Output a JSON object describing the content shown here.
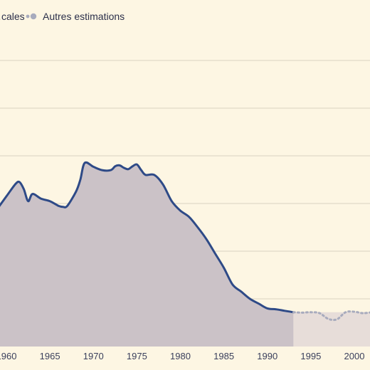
{
  "legend": {
    "items": [
      {
        "label": "…cales",
        "style": "solid",
        "color": "#2e4a87"
      },
      {
        "label": "Autres estimations",
        "style": "dotted",
        "color": "#a8abbd"
      }
    ]
  },
  "colors": {
    "background": "#fdf6e3",
    "area_main": "#cbc2c7",
    "area_other": "#e7ddd9",
    "line_main": "#2e4a87",
    "line_other": "#a8abbd",
    "grid": "#d9d2c0"
  },
  "chart_data": {
    "type": "area",
    "title": "",
    "xlabel": "",
    "ylabel": "",
    "xlim": [
      1959,
      2002
    ],
    "ylim": [
      0,
      7
    ],
    "grid": true,
    "legend_position": "top-left",
    "x_ticks": [
      "1960",
      "1965",
      "1970",
      "1975",
      "1980",
      "1985",
      "1990",
      "1995",
      "2000"
    ],
    "x_tick_values": [
      1960,
      1965,
      1970,
      1975,
      1980,
      1985,
      1990,
      1995,
      2000
    ],
    "y_gridlines": [
      1,
      2,
      3,
      4,
      5,
      6
    ],
    "series": [
      {
        "name": "…cales",
        "style": "solid",
        "x": [
          1959,
          1960,
          1961,
          1961.5,
          1962,
          1962.5,
          1963,
          1964,
          1965,
          1966,
          1966.5,
          1967,
          1968,
          1968.5,
          1969,
          1970,
          1971,
          1972,
          1972.5,
          1973,
          1973.5,
          1974,
          1974.5,
          1975,
          1975.5,
          1976,
          1977,
          1978,
          1979,
          1980,
          1981,
          1982,
          1983,
          1984,
          1985,
          1986,
          1987,
          1988,
          1989,
          1990,
          1991,
          1992,
          1993
        ],
        "values": [
          2.9,
          3.15,
          3.4,
          3.45,
          3.3,
          3.05,
          3.2,
          3.1,
          3.05,
          2.95,
          2.93,
          2.95,
          3.25,
          3.5,
          3.85,
          3.77,
          3.7,
          3.7,
          3.78,
          3.8,
          3.75,
          3.72,
          3.78,
          3.82,
          3.7,
          3.6,
          3.6,
          3.4,
          3.05,
          2.85,
          2.72,
          2.5,
          2.25,
          1.95,
          1.65,
          1.3,
          1.15,
          1.0,
          0.9,
          0.8,
          0.78,
          0.75,
          0.72
        ]
      },
      {
        "name": "Autres estimations",
        "style": "dotted",
        "x": [
          1993,
          1994,
          1995,
          1996,
          1997,
          1998,
          1999,
          2000,
          2001,
          2002
        ],
        "values": [
          0.72,
          0.71,
          0.72,
          0.7,
          0.58,
          0.57,
          0.72,
          0.73,
          0.7,
          0.72
        ]
      }
    ]
  }
}
